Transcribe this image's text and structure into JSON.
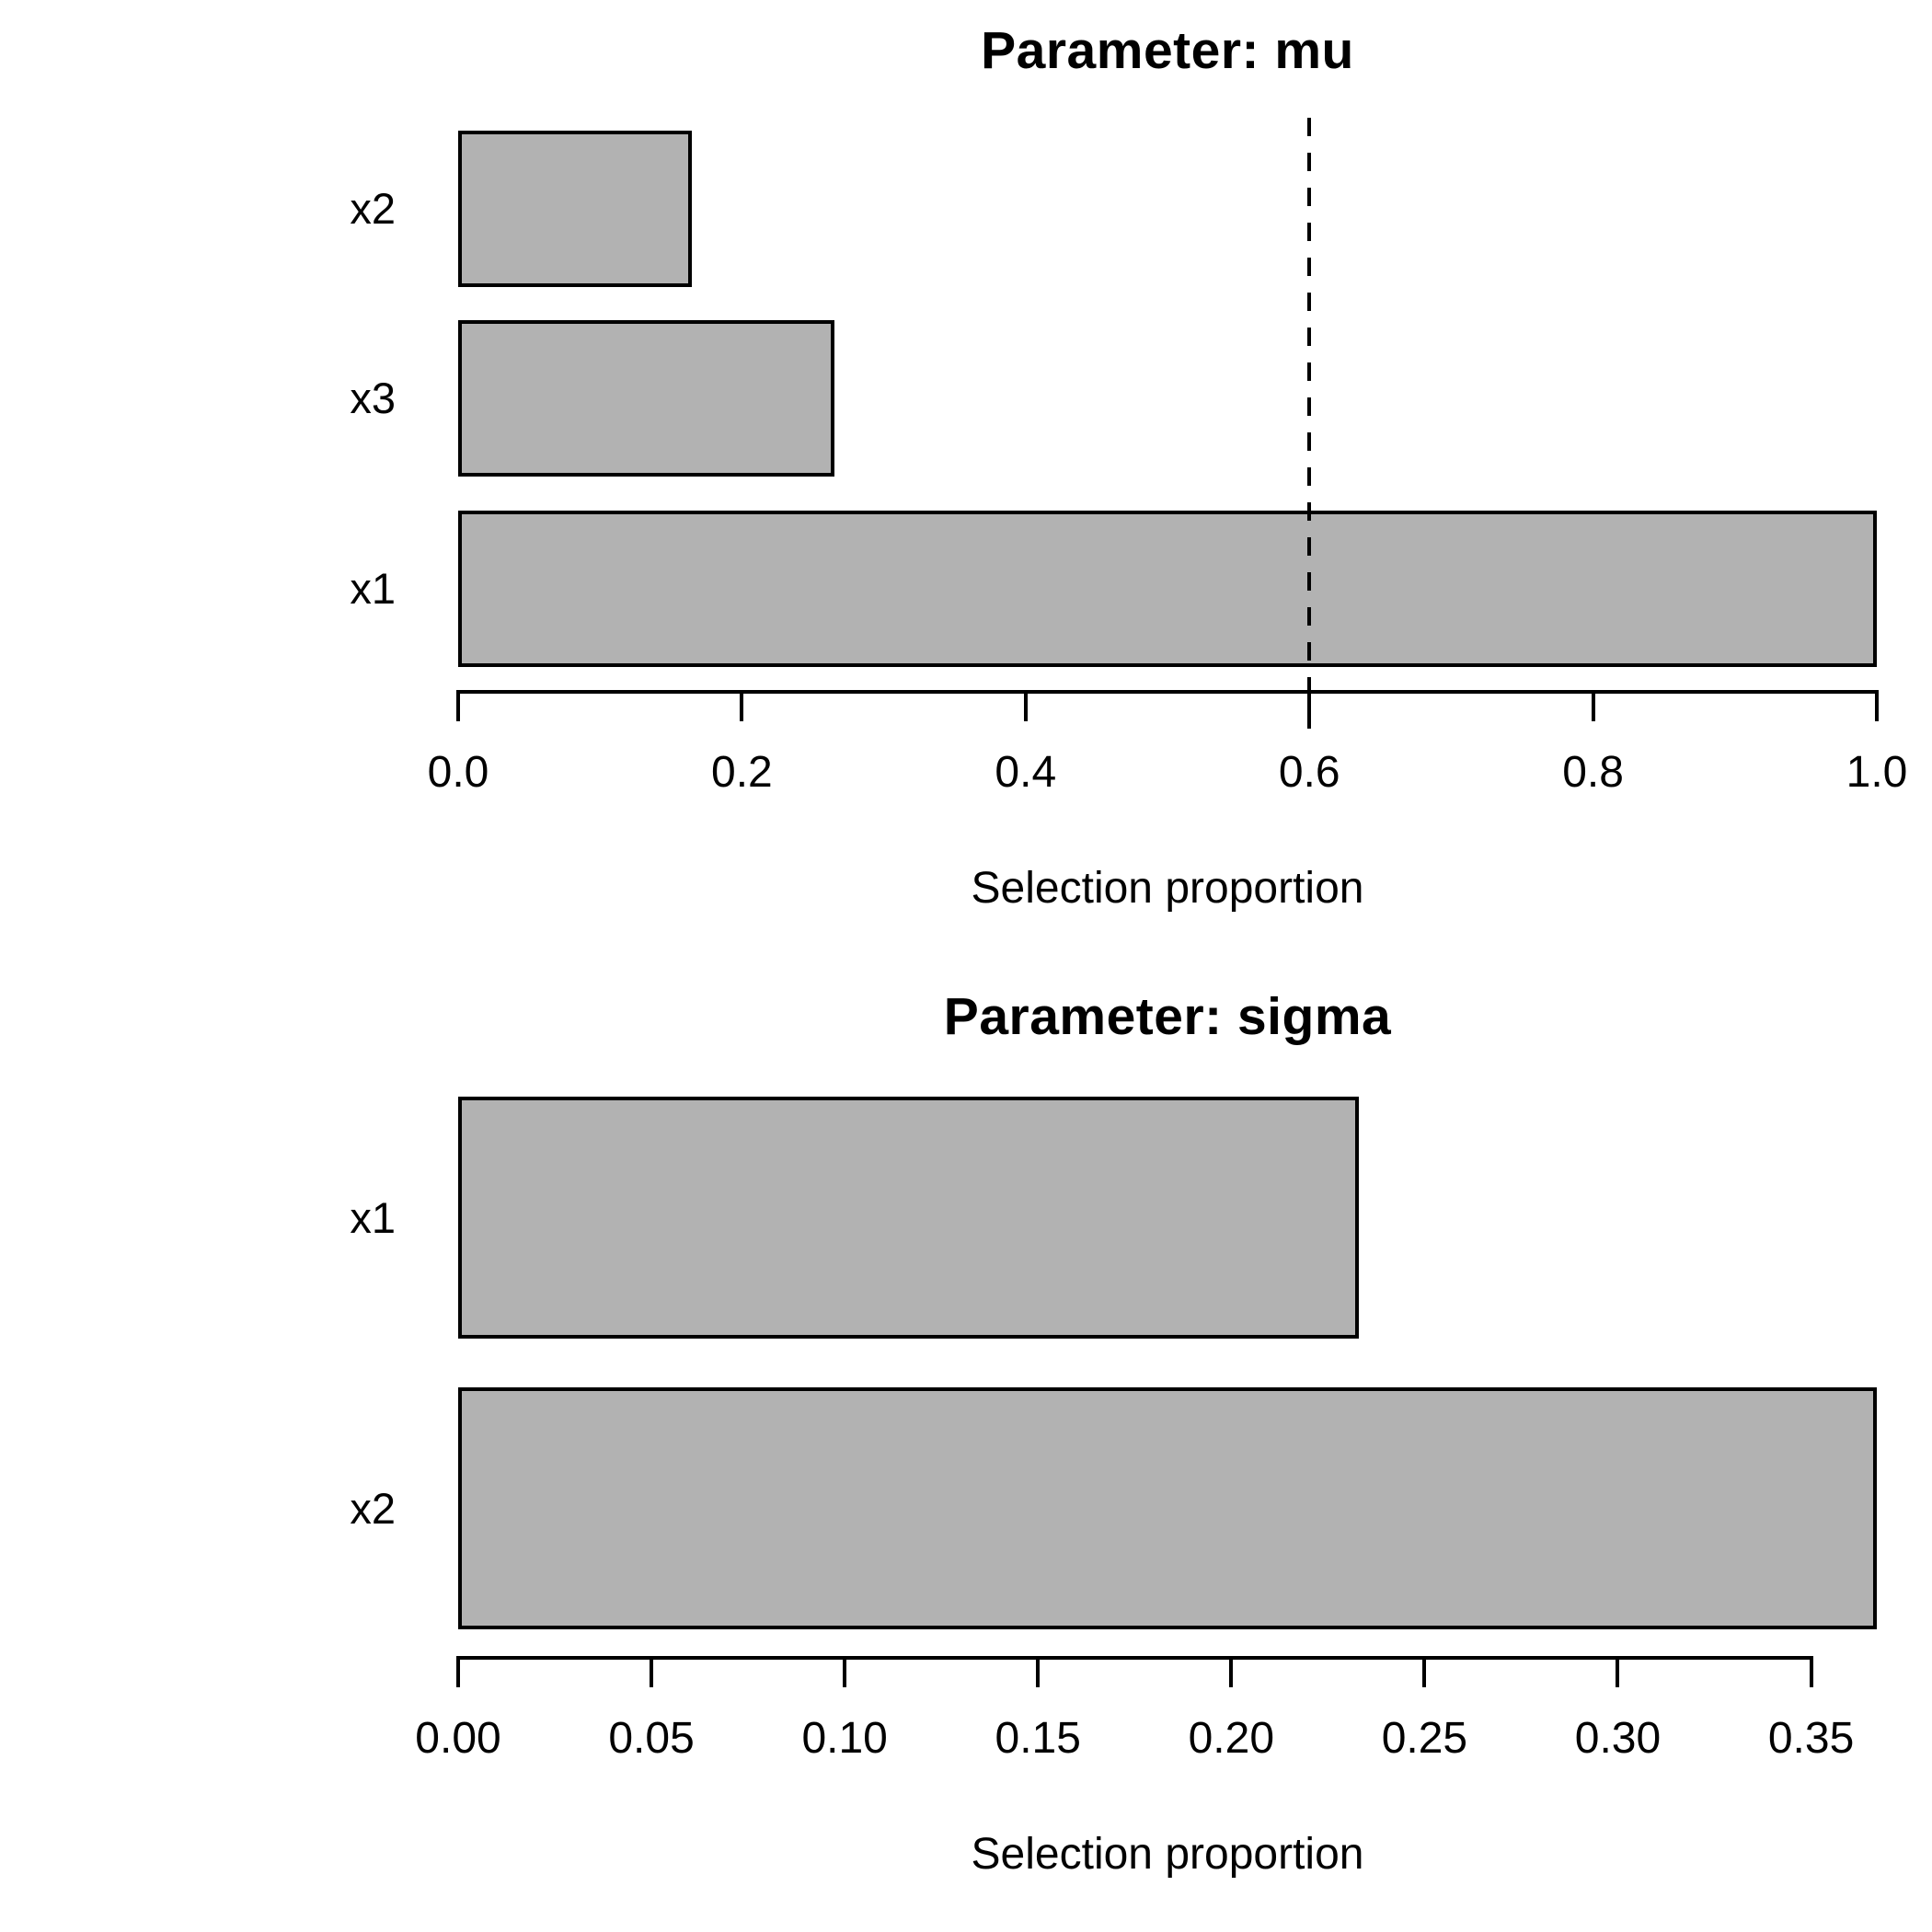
{
  "page": {
    "background_color": "#ffffff",
    "text_color": "#000000"
  },
  "chart_data": [
    {
      "type": "bar",
      "orientation": "horizontal",
      "title": "Parameter: mu",
      "xlabel": "Selection proportion",
      "categories": [
        "x2",
        "x3",
        "x1"
      ],
      "values": [
        0.165,
        0.265,
        1.0
      ],
      "xlim": [
        0,
        1.0
      ],
      "xticks": [
        "0.0",
        "0.2",
        "0.4",
        "0.6",
        "0.8",
        "1.0"
      ],
      "xtick_values": [
        0,
        0.2,
        0.4,
        0.6,
        0.8,
        1.0
      ],
      "threshold_line": 0.6,
      "threshold_style": "dashed",
      "bar_color": "#b2b2b2",
      "bar_border_color": "#000000",
      "grid": false,
      "legend": "none"
    },
    {
      "type": "bar",
      "orientation": "horizontal",
      "title": "Parameter: sigma",
      "xlabel": "Selection proportion",
      "categories": [
        "x1",
        "x2"
      ],
      "values": [
        0.233,
        0.367
      ],
      "xlim": [
        0,
        0.367
      ],
      "xticks": [
        "0.00",
        "0.05",
        "0.10",
        "0.15",
        "0.20",
        "0.25",
        "0.30",
        "0.35"
      ],
      "xtick_values": [
        0,
        0.05,
        0.1,
        0.15,
        0.2,
        0.25,
        0.3,
        0.35
      ],
      "threshold_line": null,
      "threshold_style": "none",
      "bar_color": "#b2b2b2",
      "bar_border_color": "#000000",
      "grid": false,
      "legend": "none"
    }
  ]
}
